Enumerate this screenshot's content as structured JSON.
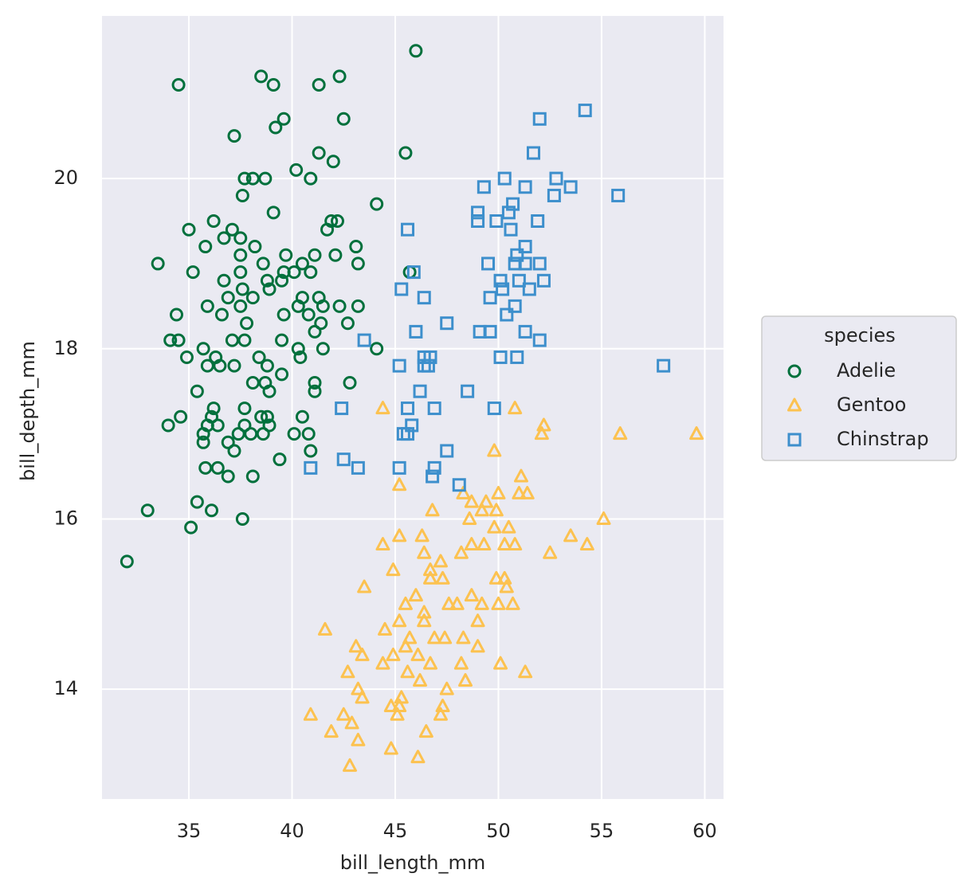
{
  "chart_data": {
    "type": "scatter",
    "xlabel": "bill_length_mm",
    "ylabel": "bill_depth_mm",
    "xlim": [
      30.79,
      60.91
    ],
    "ylim": [
      12.71,
      21.91
    ],
    "xticks": [
      35,
      40,
      45,
      50,
      55,
      60
    ],
    "yticks": [
      14,
      16,
      18,
      20
    ],
    "grid": true,
    "background": "#eaeaf2",
    "legend_title": "species",
    "legend": "right",
    "series": [
      {
        "name": "Adelie",
        "color": "#00703c",
        "marker": "circle",
        "x": [
          46.0,
          34.5,
          38.5,
          39.1,
          41.3,
          42.3,
          39.6,
          39.2,
          42.5,
          37.2,
          40.2,
          41.3,
          42.0,
          45.5,
          37.7,
          38.1,
          38.7,
          40.9,
          37.6,
          39.1,
          44.1,
          36.2,
          41.9,
          42.2,
          35.0,
          37.1,
          41.7,
          36.7,
          37.5,
          35.8,
          38.2,
          43.1,
          37.5,
          39.7,
          41.1,
          42.1,
          38.6,
          40.5,
          43.2,
          33.5,
          35.2,
          37.5,
          39.6,
          40.1,
          40.9,
          45.7,
          36.7,
          38.8,
          39.5,
          37.6,
          38.9,
          36.9,
          38.1,
          40.5,
          41.3,
          35.9,
          37.5,
          40.3,
          41.5,
          42.3,
          43.2,
          34.4,
          36.6,
          39.6,
          40.8,
          37.8,
          41.4,
          42.7,
          41.1,
          34.1,
          34.5,
          37.1,
          37.7,
          39.5,
          35.7,
          40.3,
          41.5,
          44.1,
          34.9,
          36.3,
          38.4,
          40.4,
          35.9,
          36.5,
          37.2,
          38.8,
          39.5,
          38.1,
          38.7,
          41.1,
          42.8,
          35.4,
          38.9,
          41.1,
          36.2,
          37.7,
          34.6,
          36.1,
          38.5,
          38.8,
          40.5,
          34.0,
          35.9,
          36.4,
          37.7,
          38.9,
          35.7,
          37.4,
          38.0,
          38.6,
          40.1,
          40.8,
          35.7,
          36.9,
          37.2,
          40.9,
          39.4,
          35.8,
          36.4,
          36.9,
          38.1,
          35.4,
          33.0,
          36.1,
          37.6,
          35.1,
          32.0
        ],
        "y": [
          21.5,
          21.1,
          21.2,
          21.1,
          21.1,
          21.2,
          20.7,
          20.6,
          20.7,
          20.5,
          20.1,
          20.3,
          20.2,
          20.3,
          20.0,
          20.0,
          20.0,
          20.0,
          19.8,
          19.6,
          19.7,
          19.5,
          19.5,
          19.5,
          19.4,
          19.4,
          19.4,
          19.3,
          19.3,
          19.2,
          19.2,
          19.2,
          19.1,
          19.1,
          19.1,
          19.1,
          19.0,
          19.0,
          19.0,
          19.0,
          18.9,
          18.9,
          18.9,
          18.9,
          18.9,
          18.9,
          18.8,
          18.8,
          18.8,
          18.7,
          18.7,
          18.6,
          18.6,
          18.6,
          18.6,
          18.5,
          18.5,
          18.5,
          18.5,
          18.5,
          18.5,
          18.4,
          18.4,
          18.4,
          18.4,
          18.3,
          18.3,
          18.3,
          18.2,
          18.1,
          18.1,
          18.1,
          18.1,
          18.1,
          18.0,
          18.0,
          18.0,
          18.0,
          17.9,
          17.9,
          17.9,
          17.9,
          17.8,
          17.8,
          17.8,
          17.8,
          17.7,
          17.6,
          17.6,
          17.6,
          17.6,
          17.5,
          17.5,
          17.5,
          17.3,
          17.3,
          17.2,
          17.2,
          17.2,
          17.2,
          17.2,
          17.1,
          17.1,
          17.1,
          17.1,
          17.1,
          17.0,
          17.0,
          17.0,
          17.0,
          17.0,
          17.0,
          16.9,
          16.9,
          16.8,
          16.8,
          16.7,
          16.6,
          16.6,
          16.5,
          16.5,
          16.2,
          16.1,
          16.1,
          16.0,
          15.9,
          15.5
        ]
      },
      {
        "name": "Gentoo",
        "color": "#fcc250",
        "marker": "triangle",
        "x": [
          44.4,
          50.8,
          52.2,
          52.1,
          55.9,
          59.6,
          49.8,
          51.1,
          45.2,
          51.0,
          51.4,
          50.0,
          48.3,
          48.7,
          49.4,
          49.2,
          46.8,
          49.9,
          48.6,
          55.1,
          49.8,
          50.5,
          45.2,
          46.3,
          53.5,
          44.4,
          48.7,
          49.3,
          50.3,
          50.8,
          54.3,
          48.2,
          52.5,
          46.4,
          47.2,
          44.9,
          46.7,
          46.7,
          47.3,
          49.9,
          50.3,
          43.5,
          50.4,
          46.0,
          48.7,
          45.5,
          47.6,
          48.0,
          49.2,
          50.0,
          50.7,
          46.4,
          46.4,
          45.2,
          49.0,
          41.6,
          44.5,
          45.7,
          46.9,
          47.4,
          48.3,
          43.1,
          45.5,
          49.0,
          44.9,
          46.1,
          43.4,
          44.4,
          46.7,
          48.2,
          50.1,
          42.7,
          45.6,
          51.3,
          48.4,
          46.2,
          43.2,
          47.5,
          43.4,
          45.3,
          44.8,
          45.2,
          47.3,
          40.9,
          42.5,
          45.1,
          47.2,
          42.9,
          41.9,
          46.5,
          43.2,
          44.8,
          46.1,
          42.8
        ],
        "y": [
          17.3,
          17.3,
          17.1,
          17.0,
          17.0,
          17.0,
          16.8,
          16.5,
          16.4,
          16.3,
          16.3,
          16.3,
          16.3,
          16.2,
          16.2,
          16.1,
          16.1,
          16.1,
          16.0,
          16.0,
          15.9,
          15.9,
          15.8,
          15.8,
          15.8,
          15.7,
          15.7,
          15.7,
          15.7,
          15.7,
          15.7,
          15.6,
          15.6,
          15.6,
          15.5,
          15.4,
          15.4,
          15.3,
          15.3,
          15.3,
          15.3,
          15.2,
          15.2,
          15.1,
          15.1,
          15.0,
          15.0,
          15.0,
          15.0,
          15.0,
          15.0,
          14.9,
          14.8,
          14.8,
          14.8,
          14.7,
          14.7,
          14.6,
          14.6,
          14.6,
          14.6,
          14.5,
          14.5,
          14.5,
          14.4,
          14.4,
          14.4,
          14.3,
          14.3,
          14.3,
          14.3,
          14.2,
          14.2,
          14.2,
          14.1,
          14.1,
          14.0,
          14.0,
          13.9,
          13.9,
          13.8,
          13.8,
          13.8,
          13.7,
          13.7,
          13.7,
          13.7,
          13.6,
          13.5,
          13.5,
          13.4,
          13.3,
          13.2,
          13.1
        ]
      },
      {
        "name": "Chinstrap",
        "color": "#3d8fcc",
        "marker": "square",
        "x": [
          54.2,
          52.0,
          51.7,
          50.3,
          52.8,
          49.3,
          51.3,
          53.5,
          52.7,
          55.8,
          50.7,
          49.0,
          50.5,
          49.0,
          49.9,
          51.9,
          45.6,
          50.6,
          51.3,
          50.9,
          49.5,
          50.8,
          51.3,
          52.0,
          45.9,
          50.1,
          51.0,
          52.2,
          45.3,
          50.2,
          51.5,
          46.4,
          49.6,
          50.8,
          50.4,
          47.5,
          46.0,
          49.1,
          49.6,
          51.3,
          43.5,
          52.0,
          46.4,
          46.7,
          50.1,
          50.9,
          45.2,
          46.4,
          46.6,
          58.0,
          46.2,
          48.5,
          42.4,
          45.6,
          46.9,
          49.8,
          45.8,
          45.4,
          45.6,
          47.5,
          42.5,
          40.9,
          43.2,
          45.2,
          46.9,
          46.8,
          48.1
        ],
        "y": [
          20.8,
          20.7,
          20.3,
          20.0,
          20.0,
          19.9,
          19.9,
          19.9,
          19.8,
          19.8,
          19.7,
          19.6,
          19.6,
          19.5,
          19.5,
          19.5,
          19.4,
          19.4,
          19.2,
          19.1,
          19.0,
          19.0,
          19.0,
          19.0,
          18.9,
          18.8,
          18.8,
          18.8,
          18.7,
          18.7,
          18.7,
          18.6,
          18.6,
          18.5,
          18.4,
          18.3,
          18.2,
          18.2,
          18.2,
          18.2,
          18.1,
          18.1,
          17.9,
          17.9,
          17.9,
          17.9,
          17.8,
          17.8,
          17.8,
          17.8,
          17.5,
          17.5,
          17.3,
          17.3,
          17.3,
          17.3,
          17.1,
          17.0,
          17.0,
          16.8,
          16.7,
          16.6,
          16.6,
          16.6,
          16.6,
          16.5,
          16.4
        ]
      }
    ]
  }
}
